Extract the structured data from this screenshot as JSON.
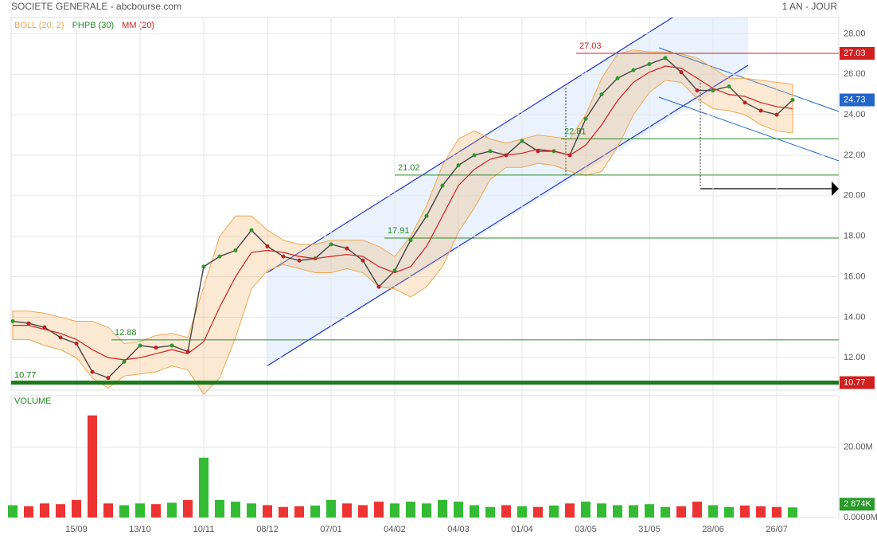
{
  "chart_data": {
    "type": "line",
    "title": "SOCIETE GENERALE - abcbourse.com",
    "period": "1 AN - JOUR",
    "indicators": [
      {
        "name": "BOLL (20, 2)",
        "color": "#f0a850"
      },
      {
        "name": "PHPB (30)",
        "color": "#2a8a2a"
      },
      {
        "name": "MM (20)",
        "color": "#d02020"
      }
    ],
    "categories": [
      null,
      null,
      null,
      null,
      "15/09",
      null,
      null,
      null,
      "13/10",
      null,
      null,
      null,
      "10/11",
      null,
      null,
      null,
      "08/12",
      null,
      null,
      null,
      "07/01",
      null,
      null,
      null,
      "04/02",
      null,
      null,
      null,
      "04/03",
      null,
      null,
      null,
      "01/04",
      null,
      null,
      null,
      "03/05",
      null,
      null,
      null,
      "31/05",
      null,
      null,
      null,
      "28/06",
      null,
      null,
      null,
      "26/07",
      null
    ],
    "series": [
      {
        "color": "#444444",
        "values": [
          13.8,
          13.7,
          13.5,
          13.0,
          12.7,
          11.3,
          11.0,
          11.8,
          12.6,
          12.5,
          12.6,
          12.3,
          16.5,
          17.0,
          17.3,
          18.3,
          17.5,
          17.0,
          16.8,
          16.9,
          17.6,
          17.4,
          16.8,
          15.5,
          16.3,
          17.8,
          19.0,
          20.5,
          21.5,
          22.0,
          22.2,
          22.0,
          22.7,
          22.2,
          22.2,
          22.0,
          23.8,
          25.0,
          25.8,
          26.2,
          26.5,
          26.8,
          26.1,
          25.2,
          25.2,
          25.4,
          24.6,
          24.2,
          24.0,
          24.73
        ]
      },
      {
        "color": "#d02020",
        "values": [
          13.6,
          13.6,
          13.4,
          13.2,
          12.9,
          12.4,
          12.0,
          11.9,
          12.0,
          12.2,
          12.4,
          12.2,
          12.8,
          14.5,
          16.0,
          17.2,
          17.3,
          17.2,
          17.0,
          16.9,
          17.0,
          17.1,
          17.0,
          16.5,
          16.2,
          16.5,
          17.5,
          19.0,
          20.5,
          21.3,
          21.8,
          22.0,
          22.1,
          22.3,
          22.2,
          22.0,
          22.5,
          23.5,
          24.7,
          25.6,
          26.1,
          26.4,
          26.3,
          25.8,
          25.3,
          25.0,
          24.9,
          24.6,
          24.4,
          24.3
        ]
      }
    ],
    "bollinger": {
      "color": "#f0a850",
      "upper": [
        14.3,
        14.3,
        14.2,
        14.0,
        13.8,
        13.8,
        13.5,
        12.7,
        12.8,
        13.1,
        13.2,
        13.0,
        15.5,
        18.0,
        19.0,
        19.0,
        18.3,
        17.8,
        17.6,
        17.6,
        17.8,
        17.8,
        17.8,
        17.5,
        17.0,
        18.0,
        19.5,
        21.5,
        22.8,
        23.2,
        22.8,
        22.6,
        22.8,
        23.0,
        22.9,
        22.8,
        24.0,
        25.8,
        27.0,
        27.2,
        27.1,
        27.1,
        27.0,
        26.8,
        26.3,
        25.8,
        25.8,
        25.7,
        25.6,
        25.5
      ],
      "lower": [
        12.9,
        12.9,
        12.6,
        12.4,
        12.0,
        11.0,
        10.5,
        11.1,
        11.2,
        11.3,
        11.6,
        11.4,
        10.2,
        11.0,
        13.0,
        15.4,
        16.3,
        16.6,
        16.4,
        16.2,
        16.2,
        16.4,
        16.2,
        15.5,
        15.4,
        15.0,
        15.5,
        16.5,
        18.2,
        19.4,
        20.8,
        21.4,
        21.4,
        21.6,
        21.5,
        21.2,
        21.0,
        21.2,
        22.4,
        24.0,
        25.1,
        25.7,
        25.6,
        24.8,
        24.3,
        24.2,
        24.0,
        23.5,
        23.2,
        23.1
      ]
    },
    "levels": [
      {
        "value": 27.03,
        "color": "#d02020"
      },
      {
        "value": 22.81,
        "color": "#2a8a2a"
      },
      {
        "value": 21.02,
        "color": "#2a8a2a"
      },
      {
        "value": 17.91,
        "color": "#2a8a2a"
      },
      {
        "value": 12.88,
        "color": "#2a8a2a"
      },
      {
        "value": 10.77,
        "color": "#1a7a1a"
      }
    ],
    "ylim": [
      10.4,
      28.8
    ],
    "yticks": [
      {
        "value": 12,
        "label": "12.00"
      },
      {
        "value": 14,
        "label": "14.00"
      },
      {
        "value": 16,
        "label": "16.00"
      },
      {
        "value": 18,
        "label": "18.00"
      },
      {
        "value": 20,
        "label": "20.00"
      },
      {
        "value": 22,
        "label": "22.00"
      },
      {
        "value": 24,
        "label": "24.00"
      },
      {
        "value": 26,
        "label": "26.00"
      },
      {
        "value": 28,
        "label": "28.00"
      }
    ],
    "volume": {
      "title": "VOLUME",
      "values": [
        3.5,
        3.2,
        4,
        3.8,
        5,
        29,
        4,
        3.5,
        4,
        3.8,
        4.2,
        5,
        17,
        5,
        4.5,
        4,
        3.5,
        3,
        3.2,
        3.4,
        5,
        4,
        3.5,
        4.5,
        4,
        4.5,
        4,
        5,
        4.5,
        3.5,
        3,
        3.5,
        3.2,
        3,
        3.4,
        4,
        4.5,
        4,
        3.5,
        3.5,
        3.8,
        3,
        3.2,
        4.5,
        3.5,
        3,
        3.4,
        3.2,
        3,
        2.874
      ],
      "last_label": "2 874K",
      "ylim": [
        0,
        34.6
      ],
      "yticks": [
        {
          "value": 0,
          "label": "0.0000M"
        },
        {
          "value": 20,
          "label": "20.00M"
        }
      ]
    }
  }
}
